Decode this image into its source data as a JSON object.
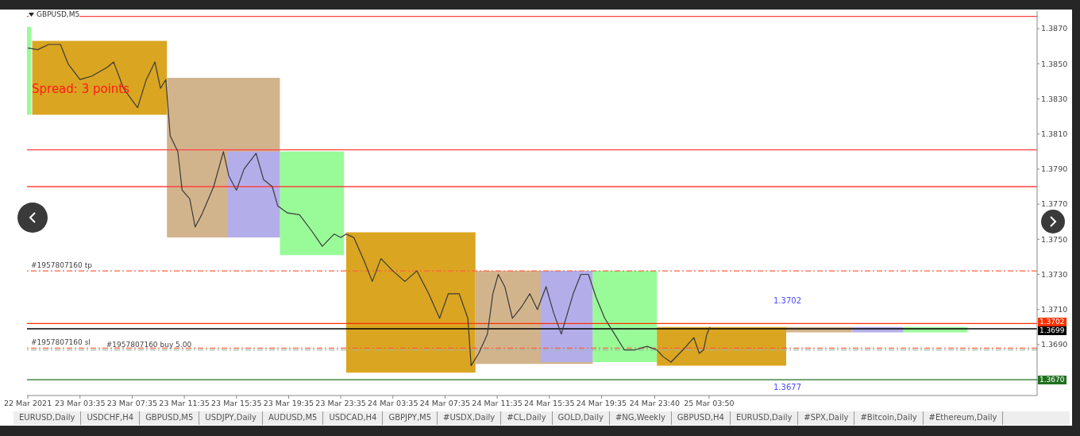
{
  "chart_data": {
    "type": "line",
    "title": "GBPUSD,M5",
    "xlim": [
      "2021-03-22T23:31",
      "2021-03-26T05:00"
    ],
    "ylim": [
      1.3661,
      1.388
    ],
    "xticks": [
      {
        "value": "2021-03-22T23:35",
        "label": "22 Mar 2021"
      },
      {
        "value": "2021-03-23T03:35",
        "label": "23 Mar 03:35"
      },
      {
        "value": "2021-03-23T07:35",
        "label": "23 Mar 07:35"
      },
      {
        "value": "2021-03-23T11:35",
        "label": "23 Mar 11:35"
      },
      {
        "value": "2021-03-23T15:35",
        "label": "23 Mar 15:35"
      },
      {
        "value": "2021-03-23T19:35",
        "label": "23 Mar 19:35"
      },
      {
        "value": "2021-03-23T23:35",
        "label": "23 Mar 23:35"
      },
      {
        "value": "2021-03-24T03:35",
        "label": "24 Mar 03:35"
      },
      {
        "value": "2021-03-24T07:35",
        "label": "24 Mar 07:35"
      },
      {
        "value": "2021-03-24T11:35",
        "label": "24 Mar 11:35"
      },
      {
        "value": "2021-03-24T15:35",
        "label": "24 Mar 15:35"
      },
      {
        "value": "2021-03-24T19:35",
        "label": "24 Mar 19:35"
      },
      {
        "value": "2021-03-24T23:40",
        "label": "24 Mar 23:40"
      },
      {
        "value": "2021-03-25T03:50",
        "label": "25 Mar 03:50"
      }
    ],
    "yticks": [
      {
        "value": 1.367,
        "label": null
      },
      {
        "value": 1.369,
        "label": "1.3690"
      },
      {
        "value": 1.371,
        "label": "1.3710"
      },
      {
        "value": 1.373,
        "label": "1.3730"
      },
      {
        "value": 1.375,
        "label": "1.3750"
      },
      {
        "value": 1.377,
        "label": "1.3770"
      },
      {
        "value": 1.379,
        "label": "1.3790"
      },
      {
        "value": 1.381,
        "label": "1.3810"
      },
      {
        "value": 1.383,
        "label": "1.3830"
      },
      {
        "value": 1.385,
        "label": "1.3850"
      },
      {
        "value": 1.387,
        "label": "1.3870"
      }
    ],
    "series": [
      {
        "type": "area",
        "color": "#98fb98",
        "x": [
          "2021-03-22T23:31",
          "2021-03-22T23:50"
        ],
        "values": [
          null,
          null
        ],
        "lower": [
          1.3821,
          1.3821
        ],
        "upper": [
          1.3871,
          1.3871
        ]
      },
      {
        "type": "area",
        "color": "#daa520",
        "x": [
          "2021-03-22T23:55",
          "2021-03-23T10:15"
        ],
        "values": [
          null,
          null
        ],
        "lower": [
          1.3821,
          1.3821
        ],
        "upper": [
          1.3863,
          1.3863
        ]
      },
      {
        "type": "area",
        "color": "#d2b48c",
        "x": [
          "2021-03-23T10:15",
          "2021-03-23T18:55"
        ],
        "values": [
          null,
          null
        ],
        "lower": [
          1.3751,
          1.3751
        ],
        "upper": [
          1.3842,
          1.3842
        ]
      },
      {
        "type": "area",
        "color": "#b3aeea",
        "x": [
          "2021-03-23T14:55",
          "2021-03-23T18:55"
        ],
        "values": [
          null,
          null
        ],
        "lower": [
          1.3751,
          1.3751
        ],
        "upper": [
          1.38,
          1.38
        ]
      },
      {
        "type": "area",
        "color": "#98fb98",
        "x": [
          "2021-03-23T18:55",
          "2021-03-23T23:50"
        ],
        "values": [
          null,
          null
        ],
        "lower": [
          1.3741,
          1.3741
        ],
        "upper": [
          1.38,
          1.38
        ]
      },
      {
        "type": "area",
        "color": "#daa520",
        "x": [
          "2021-03-24T00:00",
          "2021-03-24T09:55"
        ],
        "values": [
          null,
          null
        ],
        "lower": [
          1.3674,
          1.3674
        ],
        "upper": [
          1.3754,
          1.3754
        ]
      },
      {
        "type": "area",
        "color": "#d2b48c",
        "x": [
          "2021-03-24T09:55",
          "2021-03-24T18:55"
        ],
        "values": [
          null,
          null
        ],
        "lower": [
          1.3679,
          1.3679
        ],
        "upper": [
          1.3732,
          1.3732
        ]
      },
      {
        "type": "area",
        "color": "#b3aeea",
        "x": [
          "2021-03-24T14:55",
          "2021-03-24T18:55"
        ],
        "values": [
          null,
          null
        ],
        "lower": [
          1.368,
          1.368
        ],
        "upper": [
          1.3732,
          1.3732
        ]
      },
      {
        "type": "area",
        "color": "#98fb98",
        "x": [
          "2021-03-24T18:55",
          "2021-03-24T23:50"
        ],
        "values": [
          null,
          null
        ],
        "lower": [
          1.368,
          1.368
        ],
        "upper": [
          1.3732,
          1.3732
        ]
      },
      {
        "type": "area",
        "color": "#daa520",
        "x": [
          "2021-03-24T23:50",
          "2021-03-25T09:45"
        ],
        "values": [
          null,
          null
        ],
        "lower": [
          1.3678,
          1.3678
        ],
        "upper": [
          1.37,
          1.37
        ]
      },
      {
        "type": "area",
        "color": "#d2b48c",
        "x": [
          "2021-03-25T09:45",
          "2021-03-25T14:50"
        ],
        "values": [
          null,
          null
        ],
        "lower": [
          1.3697,
          1.3697
        ],
        "upper": [
          1.37,
          1.37
        ]
      },
      {
        "type": "area",
        "color": "#b3aeea",
        "x": [
          "2021-03-25T14:50",
          "2021-03-25T18:45"
        ],
        "values": [
          null,
          null
        ],
        "lower": [
          1.3697,
          1.3697
        ],
        "upper": [
          1.37,
          1.37
        ]
      },
      {
        "type": "area",
        "color": "#98fb98",
        "x": [
          "2021-03-25T18:45",
          "2021-03-25T23:40"
        ],
        "values": [
          null,
          null
        ],
        "lower": [
          1.3697,
          1.3697
        ],
        "upper": [
          1.37,
          1.37
        ]
      },
      {
        "color": "#3a3a3a",
        "x": [
          "2021-03-22T23:35",
          "2021-03-23T00:20",
          "2021-03-23T01:10",
          "2021-03-23T02:05",
          "2021-03-23T02:40",
          "2021-03-23T03:35",
          "2021-03-23T04:30",
          "2021-03-23T05:40",
          "2021-03-23T06:10",
          "2021-03-23T06:55",
          "2021-03-23T08:00",
          "2021-03-23T08:40",
          "2021-03-23T09:20",
          "2021-03-23T09:45",
          "2021-03-23T10:10",
          "2021-03-23T10:30",
          "2021-03-23T11:05",
          "2021-03-23T11:25",
          "2021-03-23T12:00",
          "2021-03-23T12:25",
          "2021-03-23T12:55",
          "2021-03-23T13:50",
          "2021-03-23T14:35",
          "2021-03-23T15:00",
          "2021-03-23T15:35",
          "2021-03-23T16:10",
          "2021-03-23T17:05",
          "2021-03-23T17:40",
          "2021-03-23T18:20",
          "2021-03-23T18:45",
          "2021-03-23T19:30",
          "2021-03-23T20:25",
          "2021-03-23T21:20",
          "2021-03-23T22:10",
          "2021-03-23T23:05",
          "2021-03-23T23:35",
          "2021-03-24T00:00",
          "2021-03-24T00:35",
          "2021-03-24T01:25",
          "2021-03-24T02:00",
          "2021-03-24T02:40",
          "2021-03-24T03:35",
          "2021-03-24T04:30",
          "2021-03-24T05:25",
          "2021-03-24T06:20",
          "2021-03-24T07:10",
          "2021-03-24T07:50",
          "2021-03-24T08:40",
          "2021-03-24T09:20",
          "2021-03-24T09:35",
          "2021-03-24T10:10",
          "2021-03-24T10:50",
          "2021-03-24T11:15",
          "2021-03-24T11:40",
          "2021-03-24T12:10",
          "2021-03-24T12:45",
          "2021-03-24T13:30",
          "2021-03-24T14:05",
          "2021-03-24T14:40",
          "2021-03-24T15:20",
          "2021-03-24T15:55",
          "2021-03-24T16:30",
          "2021-03-24T17:25",
          "2021-03-24T18:00",
          "2021-03-24T18:35",
          "2021-03-24T19:10",
          "2021-03-24T19:50",
          "2021-03-24T20:35",
          "2021-03-24T21:20",
          "2021-03-24T22:10",
          "2021-03-24T23:05",
          "2021-03-24T23:50",
          "2021-03-25T00:20",
          "2021-03-25T00:55",
          "2021-03-25T01:50",
          "2021-03-25T02:40",
          "2021-03-25T03:05",
          "2021-03-25T03:25",
          "2021-03-25T03:40",
          "2021-03-25T03:55"
        ],
        "values": [
          1.3859,
          1.3858,
          1.3861,
          1.3861,
          1.385,
          1.3841,
          1.3843,
          1.3848,
          1.3851,
          1.3836,
          1.3825,
          1.3841,
          1.3851,
          1.3836,
          1.3841,
          1.3809,
          1.38,
          1.3778,
          1.3773,
          1.3757,
          1.3764,
          1.378,
          1.38,
          1.3786,
          1.3778,
          1.379,
          1.3799,
          1.3784,
          1.378,
          1.3769,
          1.3765,
          1.3764,
          1.3755,
          1.3746,
          1.3753,
          1.3751,
          1.3753,
          1.3751,
          1.3737,
          1.3726,
          1.3739,
          1.3732,
          1.3726,
          1.3732,
          1.3719,
          1.3705,
          1.3719,
          1.3719,
          1.3705,
          1.3678,
          1.3685,
          1.3696,
          1.3719,
          1.373,
          1.3723,
          1.3705,
          1.3712,
          1.3719,
          1.371,
          1.3723,
          1.3708,
          1.3696,
          1.3719,
          1.373,
          1.373,
          1.3717,
          1.3705,
          1.3696,
          1.3687,
          1.3687,
          1.3689,
          1.3687,
          1.3683,
          1.368,
          1.3687,
          1.3694,
          1.3685,
          1.3687,
          1.3696,
          1.37
        ]
      }
    ],
    "ref_lines": [
      {
        "axis": "y",
        "value": 1.3877,
        "color": "#ff4040"
      },
      {
        "axis": "y",
        "value": 1.3801,
        "color": "#ff4040"
      },
      {
        "axis": "y",
        "value": 1.378,
        "color": "#ff4040"
      },
      {
        "axis": "y",
        "value": 1.3732,
        "label": "#1957807160 tp",
        "color": "#ff6040",
        "line_style": "dashed"
      },
      {
        "axis": "y",
        "value": 1.3702,
        "label": "1.3702",
        "color": "#ff3000"
      },
      {
        "axis": "y",
        "value": 1.3699,
        "label": "1.3699",
        "color": "#000000"
      },
      {
        "axis": "y",
        "value": 1.3688,
        "label": "#1957807160 sl",
        "color": "#ff6040",
        "line_style": "dashed"
      },
      {
        "axis": "y",
        "value": 1.3687,
        "label": "#1957807160 buy 5.00",
        "color": "#a0b8a0",
        "line_style": "dashed"
      },
      {
        "axis": "y",
        "value": 1.367,
        "label": "1.3670",
        "color": "#207020"
      }
    ],
    "annotations": [
      "Spread: 3 points",
      "1.3702",
      "1.3677",
      "EURUSD,Daily",
      "USDCHF,H4",
      "GBPUSD,M5",
      "USDJPY,Daily",
      "AUDUSD,M5",
      "USDCAD,H4",
      "GBPJPY,M5",
      "#USDX,Daily",
      "#CL,Daily",
      "GOLD,Daily",
      "#NG,Weekly",
      "GBPUSD,H4",
      "EURUSD,Daily",
      "#SPX,Daily",
      "#Bitcoin,Daily",
      "#Ethereum,Daily"
    ]
  }
}
